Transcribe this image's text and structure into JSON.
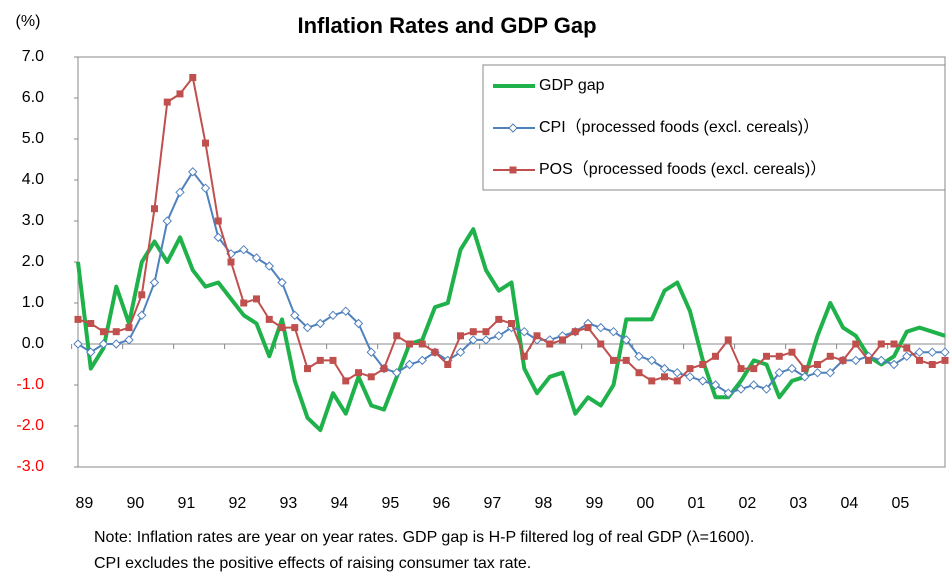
{
  "chart_data": {
    "type": "line",
    "title": "Inflation Rates and GDP Gap",
    "y_unit": "(%)",
    "notes": [
      "Note: Inflation rates are year on year rates. GDP gap is H-P filtered  log of real GDP (λ=1600).",
      "CPI excludes the positive effects of raising consumer tax rate."
    ],
    "categories": [
      "89",
      null,
      null,
      null,
      "90",
      null,
      null,
      null,
      "91",
      null,
      null,
      null,
      "92",
      null,
      null,
      null,
      "93",
      null,
      null,
      null,
      "94",
      null,
      null,
      null,
      "95",
      null,
      null,
      null,
      "96",
      null,
      null,
      null,
      "97",
      null,
      null,
      null,
      "98",
      null,
      null,
      null,
      "99",
      null,
      null,
      null,
      "00",
      null,
      null,
      null,
      "01",
      null,
      null,
      null,
      "02",
      null,
      null,
      null,
      "03",
      null,
      null,
      null,
      "04",
      null,
      null,
      null,
      "05",
      null,
      null,
      null,
      null
    ],
    "ylim": [
      -3,
      7
    ],
    "yticks": [
      {
        "value": -3,
        "label": "-3.0"
      },
      {
        "value": -2,
        "label": "-2.0"
      },
      {
        "value": -1,
        "label": "-1.0"
      },
      {
        "value": 0,
        "label": "0.0"
      },
      {
        "value": 1,
        "label": "1.0"
      },
      {
        "value": 2,
        "label": "2.0"
      },
      {
        "value": 3,
        "label": "3.0"
      },
      {
        "value": 4,
        "label": "4.0"
      },
      {
        "value": 5,
        "label": "5.0"
      },
      {
        "value": 6,
        "label": "6.0"
      },
      {
        "value": 7,
        "label": "7.0"
      }
    ],
    "negative_tick_color": "#ff0000",
    "grid": false,
    "legend": "upper right",
    "series": [
      {
        "name": "GDP gap",
        "color": "#1fb14a",
        "marker": "none",
        "values": [
          2.0,
          -0.6,
          -0.1,
          1.4,
          0.5,
          2.0,
          2.5,
          2.0,
          2.6,
          1.8,
          1.4,
          1.5,
          1.1,
          0.7,
          0.5,
          -0.3,
          0.6,
          -0.9,
          -1.8,
          -2.1,
          -1.2,
          -1.7,
          -0.8,
          -1.5,
          -1.6,
          -0.8,
          0.0,
          0.1,
          0.9,
          1.0,
          2.3,
          2.8,
          1.8,
          1.3,
          1.5,
          -0.6,
          -1.2,
          -0.8,
          -0.7,
          -1.7,
          -1.3,
          -1.5,
          -1.0,
          0.6,
          0.6,
          0.6,
          1.3,
          1.5,
          0.8,
          -0.4,
          -1.3,
          -1.3,
          -0.9,
          -0.4,
          -0.5,
          -1.3,
          -0.9,
          -0.8,
          0.2,
          1.0,
          0.4,
          0.2,
          -0.3,
          -0.5,
          -0.3,
          0.3,
          0.4,
          0.3,
          0.2
        ]
      },
      {
        "name": "CPI（processed foods (excl. cereals)）",
        "color": "#4f81bd",
        "marker": "diamond",
        "values": [
          0.0,
          -0.2,
          0.0,
          0.0,
          0.1,
          0.7,
          1.5,
          3.0,
          3.7,
          4.2,
          3.8,
          2.6,
          2.2,
          2.3,
          2.1,
          1.9,
          1.5,
          0.7,
          0.4,
          0.5,
          0.7,
          0.8,
          0.5,
          -0.2,
          -0.6,
          -0.7,
          -0.5,
          -0.4,
          -0.2,
          -0.4,
          -0.2,
          0.1,
          0.1,
          0.2,
          0.4,
          0.3,
          0.1,
          0.1,
          0.2,
          0.3,
          0.5,
          0.4,
          0.3,
          0.1,
          -0.3,
          -0.4,
          -0.6,
          -0.7,
          -0.8,
          -0.9,
          -1.0,
          -1.2,
          -1.1,
          -1.0,
          -1.1,
          -0.7,
          -0.6,
          -0.8,
          -0.7,
          -0.7,
          -0.4,
          -0.4,
          -0.3,
          -0.4,
          -0.5,
          -0.3,
          -0.2,
          -0.2,
          -0.2
        ]
      },
      {
        "name": "POS（processed foods (excl. cereals)）",
        "color": "#c0504d",
        "marker": "square",
        "values": [
          0.6,
          0.5,
          0.3,
          0.3,
          0.4,
          1.2,
          3.3,
          5.9,
          6.1,
          6.5,
          4.9,
          3.0,
          2.0,
          1.0,
          1.1,
          0.6,
          0.4,
          0.4,
          -0.6,
          -0.4,
          -0.4,
          -0.9,
          -0.7,
          -0.8,
          -0.6,
          0.2,
          0.0,
          0.0,
          -0.2,
          -0.5,
          0.2,
          0.3,
          0.3,
          0.6,
          0.5,
          -0.3,
          0.2,
          0.0,
          0.1,
          0.3,
          0.4,
          0.0,
          -0.4,
          -0.4,
          -0.7,
          -0.9,
          -0.8,
          -0.9,
          -0.6,
          -0.5,
          -0.3,
          0.1,
          -0.6,
          -0.6,
          -0.3,
          -0.3,
          -0.2,
          -0.6,
          -0.5,
          -0.3,
          -0.4,
          0.0,
          -0.4,
          0.0,
          0.0,
          -0.1,
          -0.4,
          -0.5,
          -0.4
        ]
      }
    ]
  }
}
